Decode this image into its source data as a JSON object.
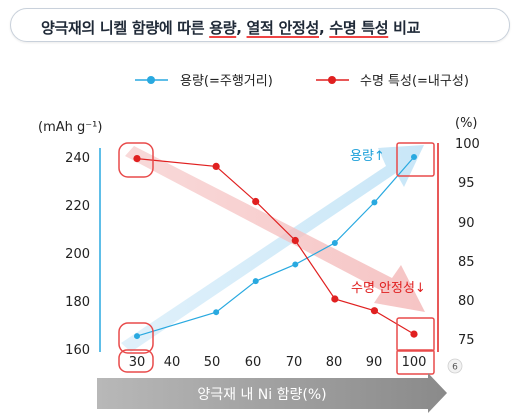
{
  "title": {
    "prefix": "양극재의 니켈 함량에 따른 ",
    "h1": "용량",
    "sep1": ", ",
    "h2": "열적 안정성",
    "sep2": ", ",
    "h3": "수명 특성",
    "suffix": " 비교"
  },
  "page_badge": "6",
  "colors": {
    "capacity": "#29a9e0",
    "life": "#e02020",
    "axis_band": "#8a8a8a"
  },
  "chart_data": {
    "type": "line",
    "x": [
      30,
      50,
      60,
      70,
      80,
      90,
      100
    ],
    "x_ticks": [
      "30",
      "40",
      "50",
      "60",
      "70",
      "80",
      "90",
      "100"
    ],
    "xlabel": "양극재 내 Ni 함량(%)",
    "xlim": [
      30,
      100
    ],
    "series": [
      {
        "name": "용량(=주행거리)",
        "axis": "left",
        "values": [
          165,
          175,
          188,
          195,
          204,
          221,
          240
        ]
      },
      {
        "name": "수명 특성(=내구성)",
        "axis": "right",
        "values": [
          98,
          97,
          92.5,
          87.5,
          80,
          78.5,
          75.5
        ]
      }
    ],
    "left_axis": {
      "unit": "(mAh g⁻¹)",
      "ticks": [
        "160",
        "180",
        "200",
        "220",
        "240"
      ],
      "ylim": [
        160,
        240
      ]
    },
    "right_axis": {
      "unit": "(%)",
      "ticks": [
        "75",
        "80",
        "85",
        "90",
        "95",
        "100"
      ],
      "ylim": [
        75,
        100
      ]
    },
    "annotations": {
      "capacity": "용량↑",
      "stability": "수명 안정성↓"
    },
    "legend_position": "top-right"
  }
}
